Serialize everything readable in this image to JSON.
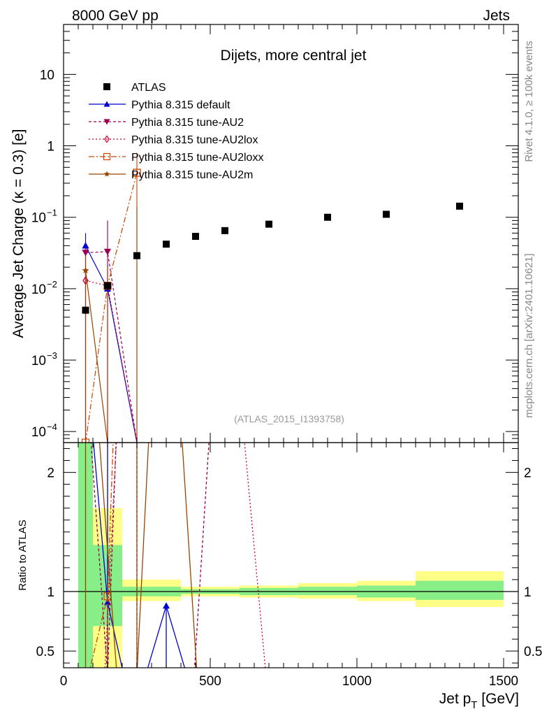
{
  "header": {
    "left": "8000 GeV pp",
    "right": "Jets"
  },
  "side_labels": {
    "top": "Rivet 4.1.0, ≥ 100k events",
    "bottom": "mcplots.cern.ch [arXiv:2401.10621]"
  },
  "colors": {
    "atlas": "#000000",
    "default": "#0000cc",
    "au2": "#99004d",
    "au2lox": "#cc0033",
    "au2loxx": "#cc4400",
    "au2m": "#994400",
    "band_inner": "#88ee88",
    "band_outer": "#ffff88"
  },
  "chart_data": [
    {
      "type": "scatter",
      "title": "Dijets, more central jet",
      "watermark": "(ATLAS_2015_I1393758)",
      "xlabel": "Jet p",
      "xlabel_sub": "T",
      "xlabel_unit": " [GeV]",
      "ylabel": "Average Jet Charge (κ = 0.3) [e]",
      "yscale": "log",
      "xlim": [
        0,
        1550
      ],
      "ylim": [
        7e-05,
        50
      ],
      "yticks": [
        {
          "value": 0.0001,
          "base": "10",
          "exp": "−4"
        },
        {
          "value": 0.001,
          "base": "10",
          "exp": "−3"
        },
        {
          "value": 0.01,
          "base": "10",
          "exp": "−2"
        },
        {
          "value": 0.1,
          "base": "10",
          "exp": "−1"
        },
        {
          "value": 1,
          "base": "1",
          "exp": ""
        },
        {
          "value": 10,
          "base": "10",
          "exp": ""
        }
      ],
      "legend": [
        {
          "key": "atlas",
          "label": "ATLAS",
          "marker": "square",
          "dash": ""
        },
        {
          "key": "default",
          "label": "Pythia 8.315 default",
          "marker": "triangle",
          "dash": ""
        },
        {
          "key": "au2",
          "label": "Pythia 8.315 tune-AU2",
          "marker": "triangle-down",
          "dash": "4,3"
        },
        {
          "key": "au2lox",
          "label": "Pythia 8.315 tune-AU2lox",
          "marker": "diamond",
          "dash": "2,3"
        },
        {
          "key": "au2loxx",
          "label": "Pythia 8.315 tune-AU2loxx",
          "marker": "open-square",
          "dash": "8,3,2,3"
        },
        {
          "key": "au2m",
          "label": "Pythia 8.315 tune-AU2m",
          "marker": "star",
          "dash": ""
        }
      ],
      "atlas": {
        "x": [
          75,
          150,
          250,
          350,
          450,
          550,
          700,
          900,
          1100,
          1350
        ],
        "y": [
          0.005,
          0.011,
          0.029,
          0.042,
          0.054,
          0.065,
          0.08,
          0.1,
          0.11,
          0.143
        ]
      },
      "series": [
        {
          "key": "default",
          "name": "Pythia 8.315 default",
          "x": [
            75,
            150,
            250
          ],
          "y": [
            0.04,
            0.01,
            7e-05
          ],
          "err_up": [
            0.06,
            0.022,
            0
          ],
          "err_dn": [
            7e-05,
            7e-05,
            0
          ]
        },
        {
          "key": "au2",
          "name": "Pythia 8.315 tune-AU2",
          "x": [
            75,
            150,
            250
          ],
          "y": [
            0.032,
            0.033,
            7e-05
          ],
          "err_up": [
            0.045,
            0.09,
            0
          ],
          "err_dn": [
            7e-05,
            7e-05,
            0
          ]
        },
        {
          "key": "au2lox",
          "name": "Pythia 8.315 tune-AU2lox",
          "x": [
            75,
            150,
            250
          ],
          "y": [
            0.013,
            0.011,
            7e-05
          ],
          "err_up": [
            0.03,
            0.02,
            0
          ],
          "err_dn": [
            7e-05,
            7e-05,
            0
          ]
        },
        {
          "key": "au2loxx",
          "name": "Pythia 8.315 tune-AU2loxx",
          "x": [
            75,
            150,
            250
          ],
          "y": [
            7e-05,
            0.011,
            0.42
          ],
          "err_up": [
            0,
            0.02,
            0.8
          ],
          "err_dn": [
            0,
            7e-05,
            7e-05
          ]
        },
        {
          "key": "au2m",
          "name": "Pythia 8.315 tune-AU2m",
          "x": [
            75,
            150,
            250
          ],
          "y": [
            0.018,
            7e-05,
            7e-05
          ],
          "err_up": [
            0.03,
            0,
            0.14
          ],
          "err_dn": [
            7e-05,
            0,
            7e-05
          ]
        }
      ]
    },
    {
      "type": "line",
      "ylabel": "Ratio to ATLAS",
      "xlim": [
        0,
        1550
      ],
      "ylim": [
        0.36,
        2.25
      ],
      "xticks": [
        0,
        500,
        1000,
        1500
      ],
      "xtick_labels": [
        "0",
        "500",
        "1000",
        "1500"
      ],
      "yticks": [
        0.5,
        1,
        2
      ],
      "ytick_labels": [
        "0.5",
        "1",
        "2"
      ],
      "bands": [
        {
          "x0": 50,
          "x1": 100,
          "inner": [
            0.3,
            2.3
          ],
          "outer": [
            0.3,
            2.3
          ]
        },
        {
          "x0": 100,
          "x1": 200,
          "inner": [
            0.71,
            1.39
          ],
          "outer": [
            0.3,
            1.7
          ]
        },
        {
          "x0": 200,
          "x1": 400,
          "inner": [
            0.96,
            1.04
          ],
          "outer": [
            0.92,
            1.1
          ]
        },
        {
          "x0": 400,
          "x1": 600,
          "inner": [
            0.98,
            1.02
          ],
          "outer": [
            0.96,
            1.04
          ]
        },
        {
          "x0": 600,
          "x1": 800,
          "inner": [
            0.97,
            1.03
          ],
          "outer": [
            0.95,
            1.05
          ]
        },
        {
          "x0": 800,
          "x1": 1000,
          "inner": [
            0.97,
            1.04
          ],
          "outer": [
            0.94,
            1.07
          ]
        },
        {
          "x0": 1000,
          "x1": 1200,
          "inner": [
            0.95,
            1.05
          ],
          "outer": [
            0.92,
            1.09
          ]
        },
        {
          "x0": 1200,
          "x1": 1500,
          "inner": [
            0.93,
            1.09
          ],
          "outer": [
            0.87,
            1.17
          ]
        }
      ],
      "curves": [
        {
          "key": "default",
          "dash": "",
          "points": [
            [
              75,
              3.0
            ],
            [
              150,
              0.91
            ],
            [
              205,
              0.3
            ]
          ],
          "markers": [
            [
              150,
              0.91
            ]
          ],
          "marker": "triangle"
        },
        {
          "key": "default",
          "dash": "",
          "points": [
            [
              280,
              0.3
            ],
            [
              350,
              0.88
            ],
            [
              420,
              0.3
            ]
          ],
          "markers": [
            [
              350,
              0.88
            ]
          ],
          "marker": "triangle"
        },
        {
          "key": "default",
          "dash": "",
          "points": [
            [
              150,
              3.0
            ],
            [
              150,
              0.3
            ]
          ],
          "markers": [],
          "marker": ""
        },
        {
          "key": "default",
          "dash": "",
          "points": [
            [
              350,
              0.88
            ],
            [
              350,
              0.3
            ]
          ],
          "markers": [],
          "marker": ""
        },
        {
          "key": "au2",
          "dash": "4,3",
          "points": [
            [
              72,
              3.0
            ],
            [
              150,
              0.3
            ],
            [
              190,
              3.0
            ]
          ],
          "markers": [],
          "marker": ""
        },
        {
          "key": "au2",
          "dash": "4,3",
          "points": [
            [
              250,
              3.0
            ],
            [
              250,
              0.3
            ]
          ],
          "markers": [],
          "marker": ""
        },
        {
          "key": "au2",
          "dash": "4,3",
          "points": [
            [
              445,
              0.3
            ],
            [
              515,
              3.0
            ]
          ],
          "markers": [],
          "marker": ""
        },
        {
          "key": "au2lox",
          "dash": "2,3",
          "points": [
            [
              140,
              0.3
            ],
            [
              195,
              3.0
            ]
          ],
          "markers": [],
          "marker": ""
        },
        {
          "key": "au2lox",
          "dash": "2,3",
          "points": [
            [
              615,
              2.3
            ],
            [
              690,
              0.3
            ]
          ],
          "markers": [],
          "marker": ""
        },
        {
          "key": "au2loxx",
          "dash": "8,3,2,3",
          "points": [
            [
              85,
              0.3
            ],
            [
              150,
              0.96
            ],
            [
              180,
              3.0
            ]
          ],
          "markers": [
            [
              150,
              0.96
            ]
          ],
          "marker": "open-square"
        },
        {
          "key": "au2loxx",
          "dash": "8,3,2,3",
          "points": [
            [
              150,
              0.96
            ],
            [
              150,
              0.3
            ]
          ],
          "markers": [],
          "marker": ""
        },
        {
          "key": "au2m",
          "dash": "",
          "points": [
            [
              75,
              3.0
            ],
            [
              75,
              0.3
            ]
          ],
          "markers": [],
          "marker": ""
        },
        {
          "key": "au2m",
          "dash": "",
          "points": [
            [
              100,
              3.0
            ],
            [
              182,
              0.3
            ]
          ],
          "markers": [],
          "marker": ""
        },
        {
          "key": "au2m",
          "dash": "",
          "points": [
            [
              250,
              3.0
            ],
            [
              250,
              0.3
            ]
          ],
          "markers": [],
          "marker": ""
        },
        {
          "key": "au2m",
          "dash": "",
          "points": [
            [
              250,
              0.3
            ],
            [
              305,
              3.0
            ]
          ],
          "markers": [],
          "marker": ""
        },
        {
          "key": "au2m",
          "dash": "",
          "points": [
            [
              385,
              3.0
            ],
            [
              455,
              0.3
            ]
          ],
          "markers": [],
          "marker": ""
        }
      ]
    }
  ]
}
